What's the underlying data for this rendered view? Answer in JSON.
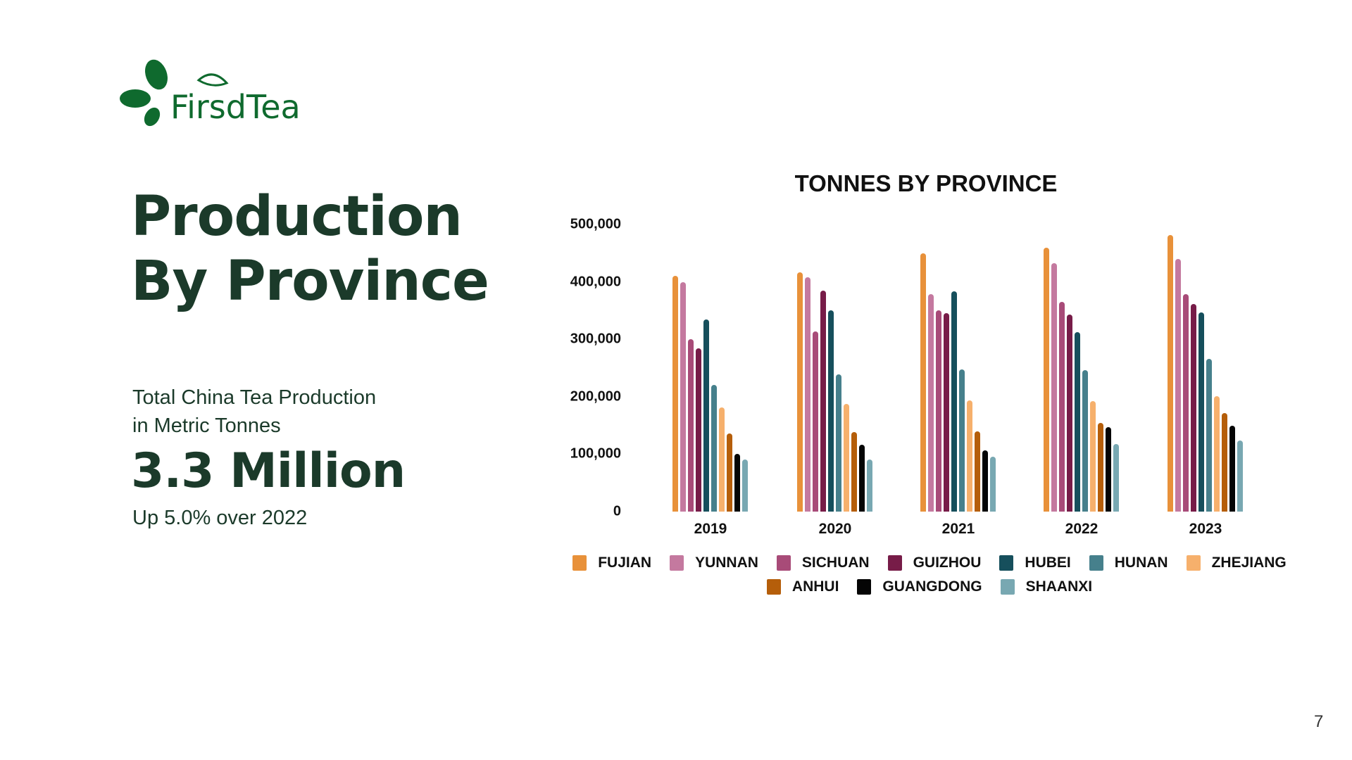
{
  "logo": {
    "text": "FirsdTea",
    "color": "#0f6a2e"
  },
  "page": {
    "title": "Production By Province",
    "subtitle_line1": "Total China Tea Production",
    "subtitle_line2": "in Metric Tonnes",
    "headline": "3.3 Million",
    "change": "Up 5.0% over 2022",
    "page_number": "7"
  },
  "chart_data": {
    "type": "bar",
    "title": "TONNES BY PROVINCE",
    "xlabel": "",
    "ylabel": "",
    "ylim": [
      0,
      500000
    ],
    "yticks": [
      "0",
      "100,000",
      "200,000",
      "300,000",
      "400,000",
      "500,000"
    ],
    "grid": false,
    "legend_position": "bottom",
    "categories": [
      "2019",
      "2020",
      "2021",
      "2022",
      "2023"
    ],
    "series": [
      {
        "name": "FUJIAN",
        "color": "#e8913a",
        "values": [
          410000,
          417000,
          450000,
          460000,
          482000
        ]
      },
      {
        "name": "YUNNAN",
        "color": "#c4799f",
        "values": [
          399000,
          408000,
          379000,
          433000,
          440000
        ]
      },
      {
        "name": "SICHUAN",
        "color": "#a84b78",
        "values": [
          300000,
          314000,
          350000,
          365000,
          379000
        ]
      },
      {
        "name": "GUIZHOU",
        "color": "#771c48",
        "values": [
          284000,
          385000,
          345000,
          343000,
          361000
        ]
      },
      {
        "name": "HUBEI",
        "color": "#164f5c",
        "values": [
          334000,
          350000,
          383000,
          313000,
          347000
        ]
      },
      {
        "name": "HUNAN",
        "color": "#46808c",
        "values": [
          221000,
          239000,
          248000,
          246000,
          266000
        ]
      },
      {
        "name": "ZHEJIANG",
        "color": "#f6b06c",
        "values": [
          181000,
          188000,
          194000,
          192000,
          201000
        ]
      },
      {
        "name": "ANHUI",
        "color": "#b55e0a",
        "values": [
          136000,
          138000,
          140000,
          154000,
          171000
        ]
      },
      {
        "name": "GUANGDONG",
        "color": "#050505",
        "values": [
          101000,
          116000,
          107000,
          147000,
          149000
        ]
      },
      {
        "name": "SHAANXI",
        "color": "#78a8b2",
        "values": [
          91000,
          91000,
          95000,
          118000,
          124000
        ]
      }
    ]
  }
}
